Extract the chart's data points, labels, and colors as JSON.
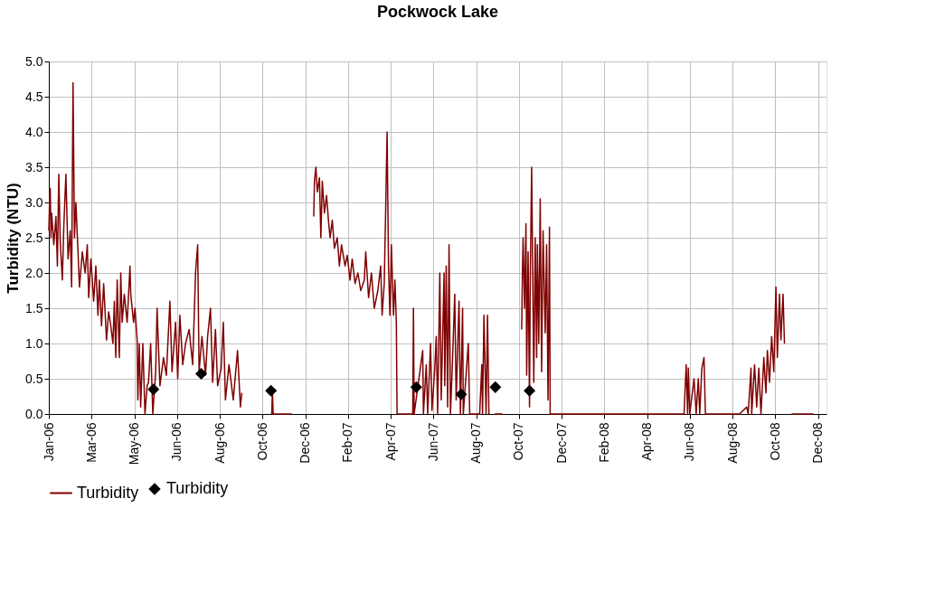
{
  "chart_data": {
    "type": "line",
    "title": "Pockwock Lake",
    "ylabel": "Turbidity (NTU)",
    "xlim": [
      "2006-01-01",
      "2008-12-28"
    ],
    "xticks": [
      {
        "value": "2006-01-01",
        "label": "Jan-06"
      },
      {
        "value": "2006-03-02",
        "label": "Mar-06"
      },
      {
        "value": "2006-05-01",
        "label": "May-06"
      },
      {
        "value": "2006-06-30",
        "label": "Jun-06"
      },
      {
        "value": "2006-08-29",
        "label": "Aug-06"
      },
      {
        "value": "2006-10-28",
        "label": "Oct-06"
      },
      {
        "value": "2006-12-27",
        "label": "Dec-06"
      },
      {
        "value": "2007-02-25",
        "label": "Feb-07"
      },
      {
        "value": "2007-04-26",
        "label": "Apr-07"
      },
      {
        "value": "2007-06-25",
        "label": "Jun-07"
      },
      {
        "value": "2007-08-24",
        "label": "Aug-07"
      },
      {
        "value": "2007-10-23",
        "label": "Oct-07"
      },
      {
        "value": "2007-12-22",
        "label": "Dec-07"
      },
      {
        "value": "2008-02-20",
        "label": "Feb-08"
      },
      {
        "value": "2008-04-20",
        "label": "Apr-08"
      },
      {
        "value": "2008-06-19",
        "label": "Jun-08"
      },
      {
        "value": "2008-08-18",
        "label": "Aug-08"
      },
      {
        "value": "2008-10-17",
        "label": "Oct-08"
      },
      {
        "value": "2008-12-16",
        "label": "Dec-08"
      }
    ],
    "ylim": [
      0,
      5
    ],
    "yticks": [
      {
        "value": 0,
        "label": "0.0"
      },
      {
        "value": 0.5,
        "label": "0.5"
      },
      {
        "value": 1,
        "label": "1.0"
      },
      {
        "value": 1.5,
        "label": "1.5"
      },
      {
        "value": 2,
        "label": "2.0"
      },
      {
        "value": 2.5,
        "label": "2.5"
      },
      {
        "value": 3,
        "label": "3.0"
      },
      {
        "value": 3.5,
        "label": "3.5"
      },
      {
        "value": 4,
        "label": "4.0"
      },
      {
        "value": 4.5,
        "label": "4.5"
      },
      {
        "value": 5,
        "label": "5.0"
      }
    ],
    "grid": true,
    "legend": "bottom",
    "series": [
      {
        "name": "Turbidity",
        "type": "line",
        "color": "#800000",
        "line_style": "solid",
        "marker": "none",
        "x": [
          "2006-01-01",
          "2006-01-02",
          "2006-01-03",
          "2006-01-04",
          "2006-01-05",
          "2006-01-08",
          "2006-01-11",
          "2006-01-13",
          "2006-01-15",
          "2006-01-17",
          "2006-01-20",
          "2006-01-22",
          "2006-01-25",
          "2006-01-28",
          "2006-01-31",
          "2006-02-02",
          "2006-02-04",
          "2006-02-06",
          "2006-02-08",
          "2006-02-11",
          "2006-02-13",
          "2006-02-17",
          "2006-02-21",
          "2006-02-24",
          "2006-02-26",
          "2006-03-01",
          "2006-03-05",
          "2006-03-08",
          "2006-03-11",
          "2006-03-13",
          "2006-03-16",
          "2006-03-19",
          "2006-03-23",
          "2006-03-26",
          "2006-03-29",
          "2006-04-01",
          "2006-04-03",
          "2006-04-05",
          "2006-04-07",
          "2006-04-10",
          "2006-04-12",
          "2006-04-14",
          "2006-04-17",
          "2006-04-21",
          "2006-04-25",
          "2006-04-26",
          "2006-04-30",
          "2006-05-02",
          "2006-05-05",
          "2006-05-06",
          "2006-05-08",
          "2006-05-10",
          "2006-05-13",
          "2006-05-16",
          "2006-05-19",
          "2006-05-21",
          "2006-05-24",
          "2006-05-27",
          "2006-05-31",
          "2006-06-02",
          "2006-06-06",
          "2006-06-11",
          "2006-06-15",
          "2006-06-20",
          "2006-06-23",
          "2006-06-28",
          "2006-07-01",
          "2006-07-04",
          "2006-07-08",
          "2006-07-12",
          "2006-07-17",
          "2006-07-22",
          "2006-07-26",
          "2006-07-29",
          "2006-07-31",
          "2006-08-04",
          "2006-08-09",
          "2006-08-12",
          "2006-08-16",
          "2006-08-19",
          "2006-08-23",
          "2006-08-26",
          "2006-08-31",
          "2006-09-03",
          "2006-09-06",
          "2006-09-11",
          "2006-09-17",
          "2006-09-23",
          "2006-09-27",
          "2006-09-29",
          "2006-10-15",
          "2006-11-10",
          "2006-11-11",
          "2006-11-12",
          "2006-12-08",
          "2006-12-15",
          "2007-01-08",
          "2007-01-09",
          "2007-01-11",
          "2007-01-13",
          "2007-01-16",
          "2007-01-18",
          "2007-01-20",
          "2007-01-23",
          "2007-01-26",
          "2007-01-29",
          "2007-01-31",
          "2007-02-03",
          "2007-02-06",
          "2007-02-10",
          "2007-02-13",
          "2007-02-16",
          "2007-02-21",
          "2007-02-24",
          "2007-02-28",
          "2007-03-03",
          "2007-03-07",
          "2007-03-11",
          "2007-03-15",
          "2007-03-20",
          "2007-03-22",
          "2007-03-26",
          "2007-03-30",
          "2007-04-03",
          "2007-04-08",
          "2007-04-12",
          "2007-04-14",
          "2007-04-17",
          "2007-04-19",
          "2007-04-21",
          "2007-04-23",
          "2007-04-25",
          "2007-04-27",
          "2007-04-30",
          "2007-05-02",
          "2007-05-04",
          "2007-05-05",
          "2007-05-27",
          "2007-05-28",
          "2007-05-29",
          "2007-06-10",
          "2007-06-11",
          "2007-06-15",
          "2007-06-17",
          "2007-06-21",
          "2007-06-23",
          "2007-06-27",
          "2007-06-29",
          "2007-07-01",
          "2007-07-04",
          "2007-07-06",
          "2007-07-10",
          "2007-07-11",
          "2007-07-13",
          "2007-07-15",
          "2007-07-17",
          "2007-07-19",
          "2007-07-22",
          "2007-07-25",
          "2007-07-27",
          "2007-07-31",
          "2007-08-02",
          "2007-08-05",
          "2007-08-06",
          "2007-08-13",
          "2007-08-15",
          "2007-08-29",
          "2007-09-01",
          "2007-09-02",
          "2007-09-04",
          "2007-09-07",
          "2007-09-09",
          "2007-09-11",
          "2007-09-14",
          "2007-09-19",
          "2007-09-30",
          "2007-10-03",
          "2007-10-27",
          "2007-10-28",
          "2007-10-29",
          "2007-10-31",
          "2007-11-02",
          "2007-11-03",
          "2007-11-05",
          "2007-11-07",
          "2007-11-08",
          "2007-11-10",
          "2007-11-13",
          "2007-11-15",
          "2007-11-17",
          "2007-11-18",
          "2007-11-20",
          "2007-11-22",
          "2007-11-24",
          "2007-11-26",
          "2007-11-29",
          "2007-12-01",
          "2007-12-03",
          "2007-12-05",
          "2007-12-06",
          "2008-06-11",
          "2008-06-14",
          "2008-06-16",
          "2008-06-17",
          "2008-06-19",
          "2008-06-25",
          "2008-06-28",
          "2008-07-01",
          "2008-07-03",
          "2008-07-06",
          "2008-07-09",
          "2008-07-11",
          "2008-08-28",
          "2008-09-07",
          "2008-09-09",
          "2008-09-13",
          "2008-09-14",
          "2008-09-18",
          "2008-09-21",
          "2008-09-24",
          "2008-09-27",
          "2008-10-01",
          "2008-10-04",
          "2008-10-06",
          "2008-10-09",
          "2008-10-12",
          "2008-10-15",
          "2008-10-18",
          "2008-10-20",
          "2008-10-23",
          "2008-10-25",
          "2008-10-28",
          "2008-10-30",
          "2008-11-05",
          "2008-11-09",
          "2008-12-10"
        ],
        "values": [
          2.6,
          3.0,
          3.2,
          2.5,
          2.85,
          2.4,
          2.8,
          2.1,
          3.4,
          2.45,
          1.9,
          2.65,
          3.4,
          2.2,
          2.6,
          1.8,
          4.7,
          2.5,
          3.0,
          2.3,
          1.8,
          2.3,
          2.0,
          2.4,
          1.65,
          2.2,
          1.6,
          2.1,
          1.4,
          1.9,
          1.25,
          1.85,
          1.05,
          1.45,
          1.25,
          1.0,
          1.6,
          0.8,
          1.9,
          0.8,
          2.0,
          1.3,
          1.7,
          1.3,
          2.1,
          1.7,
          1.3,
          1.5,
          1.05,
          0.2,
          1.0,
          0.1,
          1.0,
          0,
          0.4,
          0.45,
          1.0,
          0,
          0.6,
          1.5,
          0.4,
          0.8,
          0.55,
          1.6,
          0.6,
          1.3,
          0.5,
          1.4,
          0.7,
          1.0,
          1.2,
          0.7,
          2.0,
          2.4,
          0.6,
          1.1,
          0.55,
          1.1,
          1.5,
          0.45,
          1.2,
          0.4,
          0.65,
          1.3,
          0.2,
          0.7,
          0.2,
          0.9,
          0.1,
          0.3,
          null,
          0,
          0.33,
          0,
          0,
          null,
          2.8,
          3.3,
          3.5,
          3.15,
          3.35,
          2.5,
          3.3,
          2.85,
          3.1,
          2.7,
          2.5,
          2.75,
          2.35,
          2.5,
          2.1,
          2.4,
          2.1,
          2.25,
          1.9,
          2.2,
          1.85,
          2.0,
          1.75,
          1.9,
          2.3,
          1.65,
          2.0,
          1.5,
          1.75,
          2.1,
          1.4,
          1.85,
          2.9,
          4.0,
          2.1,
          1.4,
          2.4,
          1.4,
          1.9,
          1.3,
          0,
          0,
          1.5,
          0,
          0.9,
          0,
          0.7,
          0,
          1.0,
          0.05,
          0.65,
          1.1,
          0,
          2.0,
          0.2,
          2.0,
          0.4,
          2.1,
          0.1,
          2.4,
          0,
          0.8,
          1.7,
          0.2,
          1.6,
          0,
          1.5,
          0,
          1.0,
          0,
          0,
          0.7,
          0,
          1.4,
          0,
          1.4,
          0,
          null,
          0,
          0,
          null,
          1.2,
          2.0,
          2.5,
          1.5,
          2.7,
          0.55,
          2.3,
          0.1,
          1.9,
          3.5,
          0.45,
          2.5,
          0.8,
          2.4,
          1.0,
          3.05,
          0.6,
          2.6,
          1.15,
          2.4,
          0.2,
          2.65,
          0,
          0,
          0.7,
          0,
          0.65,
          0,
          0.5,
          0,
          0.5,
          0,
          0.65,
          0.8,
          0,
          0,
          0.1,
          0,
          0.65,
          0,
          0.7,
          0.1,
          0.65,
          0,
          0.8,
          0.3,
          0.9,
          0.45,
          1.1,
          0.6,
          1.8,
          0.8,
          1.7,
          1.05,
          1.7,
          1.0,
          null,
          0,
          0
        ]
      },
      {
        "name": "Turbidity",
        "type": "scatter",
        "color": "#000000",
        "marker": "diamond",
        "x": [
          "2006-05-28",
          "2006-08-03",
          "2006-11-09",
          "2007-06-01",
          "2007-08-03",
          "2007-09-20",
          "2007-11-07"
        ],
        "values": [
          0.35,
          0.57,
          0.33,
          0.38,
          0.28,
          0.38,
          0.33
        ]
      }
    ]
  }
}
